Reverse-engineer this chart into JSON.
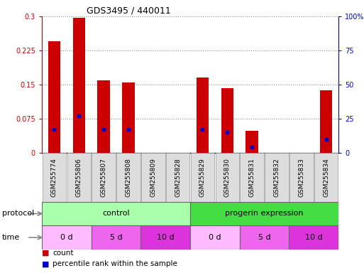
{
  "title": "GDS3495 / 440011",
  "samples": [
    "GSM255774",
    "GSM255806",
    "GSM255807",
    "GSM255808",
    "GSM255809",
    "GSM255828",
    "GSM255829",
    "GSM255830",
    "GSM255831",
    "GSM255832",
    "GSM255833",
    "GSM255834"
  ],
  "count_values": [
    0.245,
    0.297,
    0.16,
    0.155,
    0.0,
    0.0,
    0.165,
    0.143,
    0.048,
    0.0,
    0.0,
    0.137
  ],
  "percentile_values": [
    17,
    27,
    17,
    17,
    0,
    0,
    17,
    15,
    4,
    0,
    0,
    10
  ],
  "ylim_left": [
    0,
    0.3
  ],
  "ylim_right": [
    0,
    100
  ],
  "yticks_left": [
    0,
    0.075,
    0.15,
    0.225,
    0.3
  ],
  "yticks_right": [
    0,
    25,
    50,
    75,
    100
  ],
  "ytick_labels_right": [
    "0",
    "25",
    "50",
    "75",
    "100%"
  ],
  "bar_color": "#cc0000",
  "percentile_color": "#0000cc",
  "bar_width": 0.5,
  "protocol_control_color": "#aaffaa",
  "protocol_progerin_color": "#44dd44",
  "time_color": "#ee66ee",
  "time_color_0d": "#ffbbff",
  "time_color_5d": "#ee66ee",
  "time_color_10d": "#dd33dd",
  "tick_label_bg": "#dddddd",
  "protocol_labels": [
    "control",
    "progerin expression"
  ],
  "time_labels": [
    "0 d",
    "5 d",
    "10 d",
    "0 d",
    "5 d",
    "10 d"
  ],
  "label_fontsize": 8,
  "tick_fontsize": 7,
  "sample_fontsize": 6.5,
  "axis_label_color_left": "#cc0000",
  "axis_label_color_right": "#0000cc",
  "bg_color": "#ffffff",
  "grid_color": "#888888"
}
